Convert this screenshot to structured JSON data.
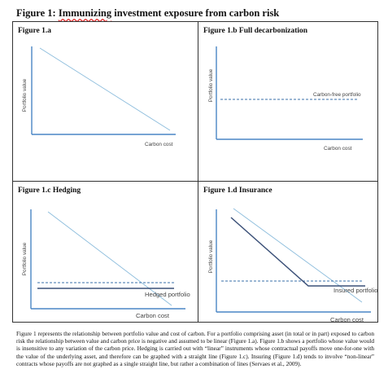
{
  "title": {
    "prefix": "Figure 1: ",
    "underlined": "Immunizing",
    "suffix": " investment exposure from carbon risk"
  },
  "panels": [
    {
      "title": "Figure 1.a",
      "ylabel": "Portfolio value",
      "xlabel": "Carbon cost",
      "annotation": ""
    },
    {
      "title": "Figure 1.b Full decarbonization",
      "ylabel": "Portfolio value",
      "xlabel": "Carbon cost",
      "annotation": "Carbon-free portfolio"
    },
    {
      "title": "Figure 1.c Hedging",
      "ylabel": "Portfolio value",
      "xlabel": "Carbon cost",
      "annotation": "Hedged portfolio"
    },
    {
      "title": "Figure 1.d Insurance",
      "ylabel": "Portfolio value",
      "xlabel": "Carbon cost",
      "annotation": "Insured portfolio"
    }
  ],
  "caption": "Figure 1 represents the relationship between portfolio value and cost of carbon. For a portfolio comprising asset (in total or in part) exposed to carbon risk the relationship between value and carbon price is negative and assumed to be linear (Figure 1.a). Figure 1.b shows a portfolio whose value would is insensitive to any variation of the carbon price. Hedging is carried out with “linear” instruments whose contractual payoffs move one-for-one with the value of the underlying asset, and therefore can be graphed with a straight line (Figure 1.c). Insuring (Figure 1.d) tends to involve “non-linear” contracts whose payoffs are not graphed as a single straight line, but rather a combination of lines (Servaes et al., 2009).",
  "colors": {
    "axis": "#4a86c5",
    "line_light": "#8bbcdc",
    "dashed": "#3a6fa8",
    "line_dark": "#3b5078"
  }
}
